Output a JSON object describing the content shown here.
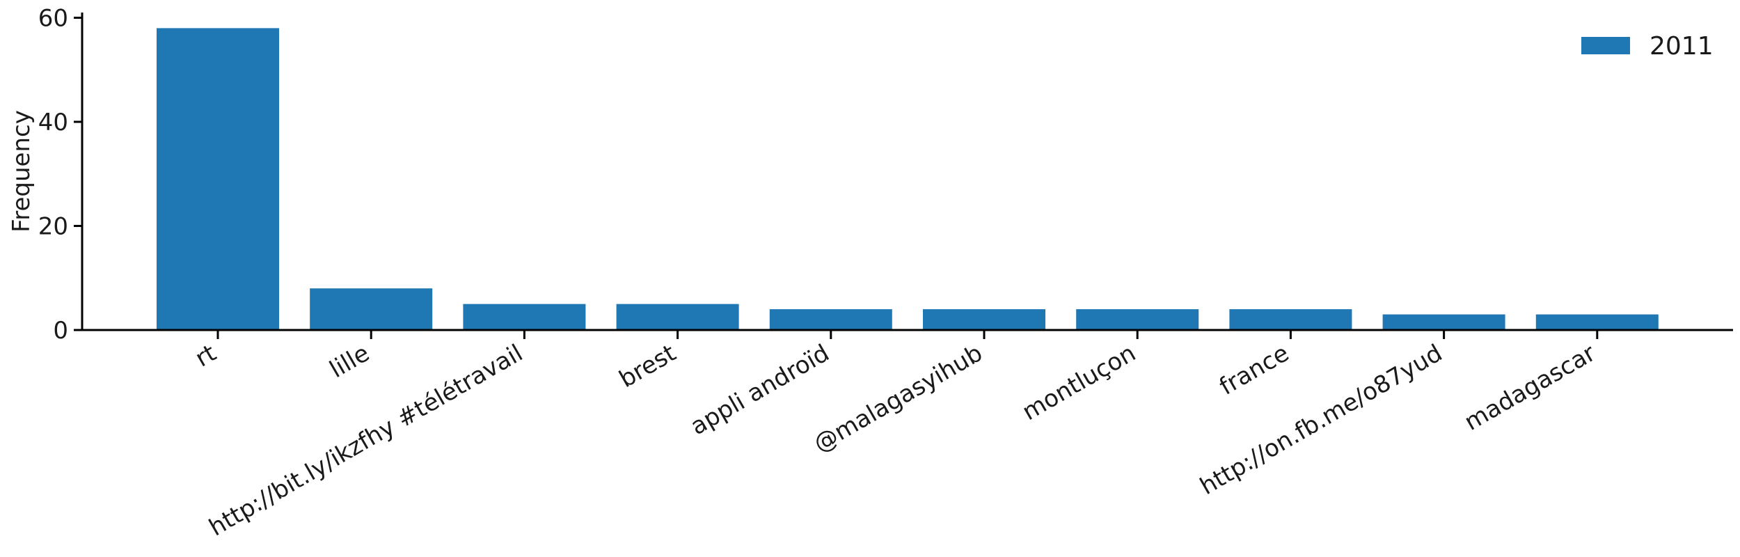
{
  "chart_data": {
    "type": "bar",
    "categories": [
      "rt",
      "lille",
      "http://bit.ly/ikzfhy #télétravail",
      "brest",
      "appli androïd",
      "@malagasyihub",
      "montluçon",
      "france",
      "http://on.fb.me/o87yud",
      "madagascar"
    ],
    "series": [
      {
        "name": "2011",
        "values": [
          58,
          8,
          5,
          5,
          4,
          4,
          4,
          4,
          3,
          3
        ]
      }
    ],
    "title": "",
    "xlabel": "",
    "ylabel": "Frequency",
    "ylim": [
      0,
      61
    ],
    "yticks": [
      0,
      20,
      40,
      60
    ],
    "grid": false,
    "legend_position": "top-right",
    "bar_color": "#1f77b4"
  }
}
